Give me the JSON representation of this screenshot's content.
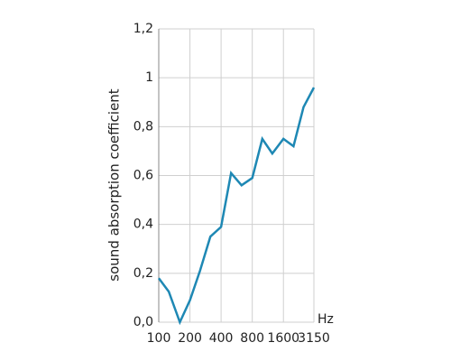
{
  "chart_data": {
    "type": "line",
    "y_label": "sound absorption coefficient",
    "x_label": "Hz",
    "x": [
      100,
      125,
      160,
      200,
      250,
      315,
      400,
      500,
      630,
      800,
      1000,
      1250,
      1600,
      2000,
      2500,
      3150
    ],
    "series": [
      {
        "color": "#1e88b4",
        "values": [
          0.18,
          0.125,
          0.0,
          0.09,
          0.21,
          0.35,
          0.39,
          0.61,
          0.56,
          0.59,
          0.75,
          0.69,
          0.75,
          0.72,
          0.88,
          0.96
        ]
      }
    ],
    "xscale": "log",
    "xlim": [
      100,
      3150
    ],
    "xticks": [
      100,
      200,
      400,
      800,
      1600,
      3150
    ],
    "ylim": [
      0,
      1.2
    ],
    "yticks": [
      {
        "value": 0,
        "label": "0,0"
      },
      {
        "value": 0.2,
        "label": "0,2"
      },
      {
        "value": 0.4,
        "label": "0,4"
      },
      {
        "value": 0.6,
        "label": "0,6"
      },
      {
        "value": 0.8,
        "label": "0,8"
      },
      1,
      {
        "value": 1.2,
        "label": "1,2"
      }
    ],
    "grid": true
  }
}
